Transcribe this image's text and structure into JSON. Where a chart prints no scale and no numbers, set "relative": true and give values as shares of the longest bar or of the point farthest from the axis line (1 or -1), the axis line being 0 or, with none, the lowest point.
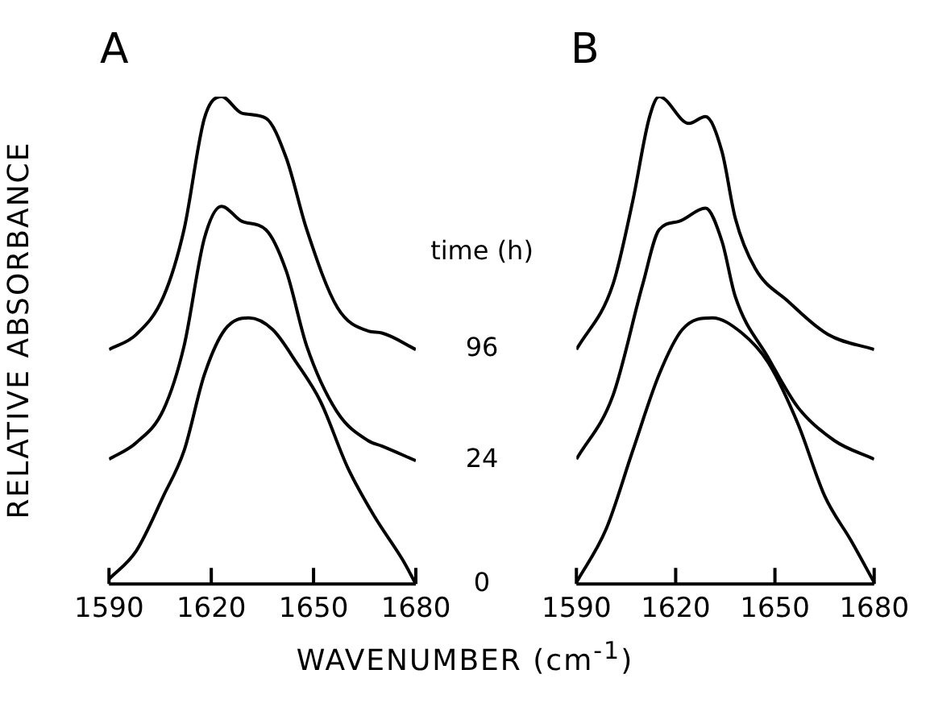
{
  "chart_data": [
    {
      "type": "line",
      "title": "A",
      "xlabel": "WAVENUMBER (cm$^{-1}$)",
      "ylabel": "RELATIVE ABSORBANCE",
      "legend_title": "time (h)",
      "relative": true,
      "xlim": [
        1590,
        1680
      ],
      "xticks": [
        1590,
        1620,
        1650,
        1680
      ],
      "grid": false,
      "tick_labels": "x",
      "marker": "none",
      "line_style": "solid",
      "series": [
        {
          "name": "96",
          "color": "#000000",
          "x": [
            1590,
            1598,
            1606,
            1612,
            1618,
            1623,
            1629,
            1636,
            1642,
            1648,
            1657,
            1666,
            1670,
            1680
          ],
          "values": [
            0.481,
            0.512,
            0.59,
            0.727,
            0.956,
            1.0,
            0.966,
            0.956,
            0.874,
            0.727,
            0.567,
            0.519,
            0.515,
            0.481
          ]
        },
        {
          "name": "24",
          "color": "#000000",
          "x": [
            1590,
            1598,
            1606,
            1612,
            1618,
            1623,
            1629,
            1636,
            1642,
            1648,
            1657,
            1666,
            1670,
            1680
          ],
          "values": [
            0.256,
            0.29,
            0.358,
            0.488,
            0.71,
            0.775,
            0.744,
            0.727,
            0.642,
            0.488,
            0.352,
            0.294,
            0.283,
            0.253
          ]
        },
        {
          "name": "0",
          "color": "#000000",
          "x": [
            1590,
            1598,
            1606,
            1612,
            1618,
            1624,
            1631,
            1638,
            1645,
            1652,
            1660,
            1668,
            1676,
            1680
          ],
          "values": [
            0.01,
            0.068,
            0.181,
            0.273,
            0.43,
            0.522,
            0.546,
            0.522,
            0.454,
            0.375,
            0.239,
            0.137,
            0.051,
            0.0
          ]
        }
      ]
    },
    {
      "type": "line",
      "title": "B",
      "relative": true,
      "xlim": [
        1590,
        1680
      ],
      "xticks": [
        1590,
        1620,
        1650,
        1680
      ],
      "grid": false,
      "tick_labels": "x",
      "marker": "none",
      "line_style": "solid",
      "series": [
        {
          "color": "#000000",
          "x": [
            1590,
            1601,
            1607,
            1612,
            1615,
            1624,
            1629,
            1634,
            1638,
            1644,
            1654,
            1666,
            1680
          ],
          "values": [
            0.481,
            0.614,
            0.785,
            0.956,
            1.0,
            0.945,
            0.959,
            0.887,
            0.751,
            0.648,
            0.58,
            0.512,
            0.481
          ]
        },
        {
          "color": "#000000",
          "x": [
            1590,
            1601,
            1610,
            1615,
            1621,
            1629,
            1634,
            1638,
            1648,
            1657,
            1668,
            1680
          ],
          "values": [
            0.256,
            0.386,
            0.614,
            0.727,
            0.744,
            0.771,
            0.703,
            0.59,
            0.464,
            0.362,
            0.294,
            0.256
          ]
        },
        {
          "color": "#000000",
          "x": [
            1590,
            1599,
            1607,
            1615,
            1622,
            1631,
            1640,
            1648,
            1657,
            1665,
            1673,
            1680
          ],
          "values": [
            0.003,
            0.113,
            0.273,
            0.43,
            0.522,
            0.546,
            0.515,
            0.454,
            0.328,
            0.181,
            0.089,
            0.003
          ]
        }
      ]
    }
  ]
}
